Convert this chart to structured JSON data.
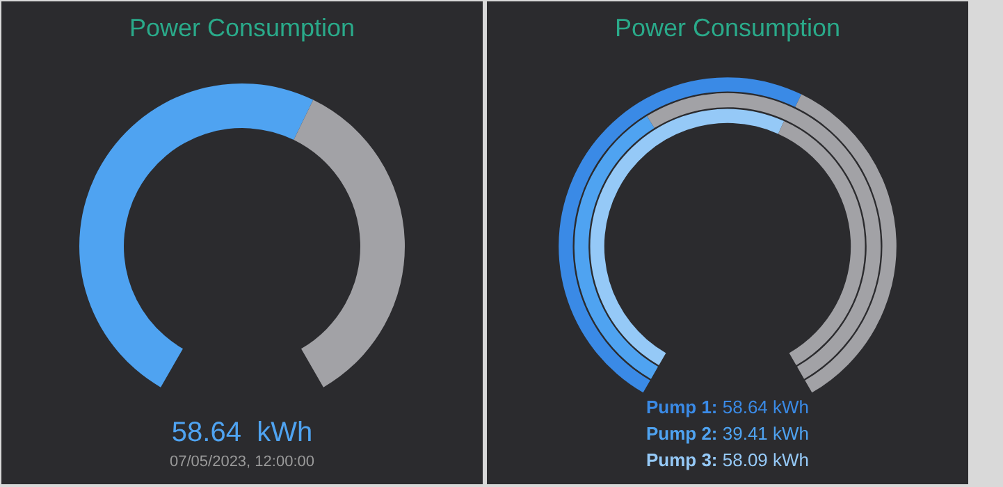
{
  "chart_data": [
    {
      "type": "donut",
      "title": "Power Consumption",
      "categories": [
        null,
        null
      ],
      "values": [
        58.64,
        41.36
      ],
      "colors": [
        "#4fa3f1",
        "#a2a2a6"
      ],
      "annotations": [
        "58.64  kWh",
        "07/05/2023, 12:00:00"
      ]
    },
    {
      "type": "donut",
      "title": "Power Consumption",
      "categories": [
        null,
        null
      ],
      "series": [
        {
          "name": "Pump 1:",
          "color": "#3a8ae6",
          "colors": [
            "#3a8ae6",
            "#a2a2a6"
          ],
          "values": [
            58.64,
            41.36
          ]
        },
        {
          "name": "Pump 2:",
          "color": "#4fa3f1",
          "colors": [
            "#4fa3f1",
            "#a2a2a6"
          ],
          "values": [
            39.41,
            60.59
          ]
        },
        {
          "name": "Pump 3:",
          "color": "#95c9f7",
          "colors": [
            "#95c9f7",
            "#a2a2a6"
          ],
          "values": [
            58.09,
            41.91
          ]
        }
      ],
      "annotations": [
        "58.64 kWh",
        "39.41 kWh",
        "58.09 kWh"
      ]
    }
  ]
}
